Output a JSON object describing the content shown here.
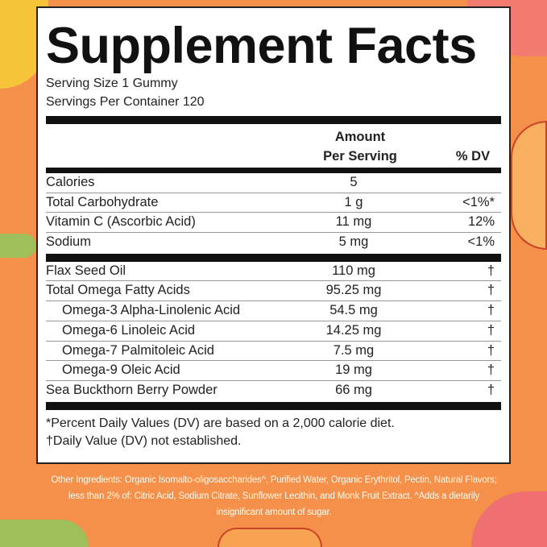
{
  "title": "Supplement Facts",
  "serving_size": "Serving Size 1 Gummy",
  "servings_per_container": "Servings Per Container 120",
  "header": {
    "amount_line1": "Amount",
    "amount_line2": "Per Serving",
    "dv": "% DV"
  },
  "group1": [
    {
      "name": "Calories",
      "amount": "5",
      "dv": ""
    },
    {
      "name": "Total Carbohydrate",
      "amount": "1 g",
      "dv": "<1%*"
    },
    {
      "name": "Vitamin C (Ascorbic Acid)",
      "amount": "11 mg",
      "dv": "12%"
    },
    {
      "name": "Sodium",
      "amount": "5 mg",
      "dv": "<1%"
    }
  ],
  "group2": [
    {
      "name": "Flax Seed Oil",
      "amount": "110 mg",
      "dv": "†"
    },
    {
      "name": "Total Omega Fatty Acids",
      "amount": "95.25 mg",
      "dv": "†"
    },
    {
      "name": "Omega-3 Alpha-Linolenic Acid",
      "amount": "54.5 mg",
      "dv": "†"
    },
    {
      "name": "Omega-6 Linoleic Acid",
      "amount": "14.25 mg",
      "dv": "†"
    },
    {
      "name": "Omega-7 Palmitoleic Acid",
      "amount": "7.5 mg",
      "dv": "†"
    },
    {
      "name": "Omega-9 Oleic Acid",
      "amount": "19 mg",
      "dv": "†"
    },
    {
      "name": "Sea Buckthorn Berry Powder",
      "amount": "66 mg",
      "dv": "†"
    }
  ],
  "footnote1": "*Percent Daily Values (DV) are based on a 2,000 calorie diet.",
  "footnote2": "†Daily Value (DV) not established.",
  "other_ingredients": "Other Ingredients: Organic Isomalto-oligosaccharides^, Purified Water, Organic Erythritol, Pectin, Natural Flavors; less than 2% of: Citric Acid, Sodium Citrate, Sunflower Lecithin, and Monk Fruit Extract. ^Adds a dietarily insignificant amount of sugar.",
  "colors": {
    "background": "#f5904a",
    "label": "#ffffff",
    "text": "#222222"
  }
}
